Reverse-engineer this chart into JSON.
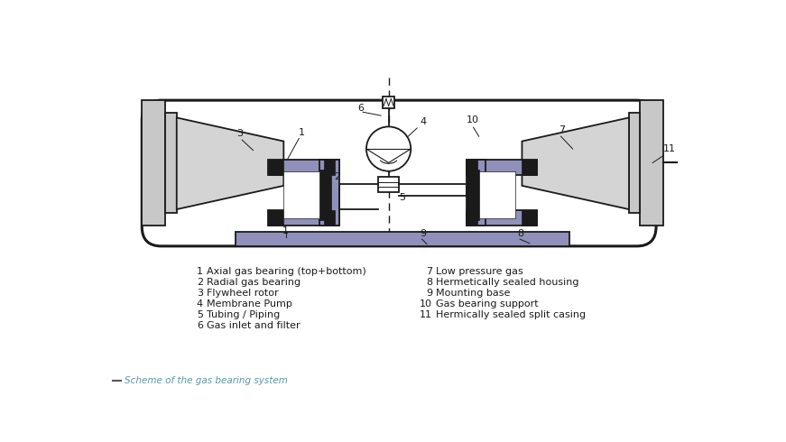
{
  "bg_color": "#ffffff",
  "housing_fill": "#ffffff",
  "housing_edge": "#1a1a1a",
  "flywheel_fill": "#d4d4d4",
  "flywheel_edge": "#1a1a1a",
  "bearing_fill": "#9090bb",
  "bearing_edge": "#1a1a1a",
  "black": "#1a1a1a",
  "white": "#ffffff",
  "gray_cap": "#c8c8c8",
  "legend_left": [
    [
      "1",
      "Axial gas bearing (top+bottom)"
    ],
    [
      "2",
      "Radial gas bearing"
    ],
    [
      "3",
      "Flywheel rotor"
    ],
    [
      "4",
      "Membrane Pump"
    ],
    [
      "5",
      "Tubing / Piping"
    ],
    [
      "6",
      "Gas inlet and filter"
    ]
  ],
  "legend_right": [
    [
      "7",
      "Low pressure gas"
    ],
    [
      "8",
      "Hermetically sealed housing"
    ],
    [
      "9",
      "Mounting base"
    ],
    [
      "10",
      "Gas bearing support"
    ],
    [
      "11",
      "Hermically sealed split casing"
    ]
  ],
  "caption": "Scheme of the gas bearing system",
  "caption_color": "#5599aa",
  "dash_color": "#555555"
}
